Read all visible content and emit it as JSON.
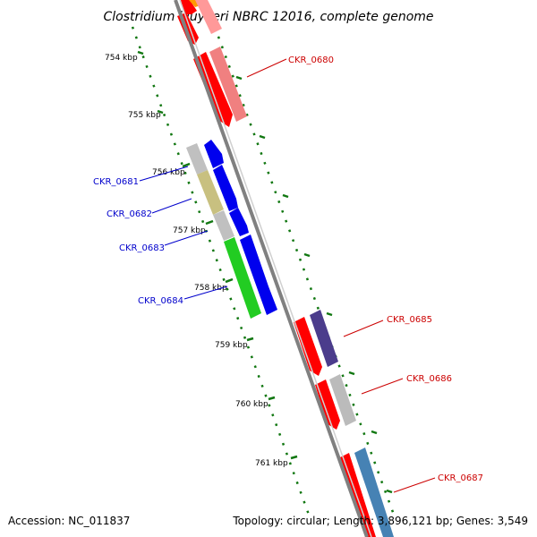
{
  "title": "Clostridium kluyveri NBRC 12016, complete genome",
  "footer": {
    "accession": "Accession: NC_011837",
    "summary": "Topology: circular; Length: 3,896,121 bp; Genes: 3,549"
  },
  "scale": {
    "ticks": [
      "754 kbp",
      "755 kbp",
      "756 kbp",
      "757 kbp",
      "758 kbp",
      "759 kbp",
      "760 kbp",
      "761 kbp"
    ]
  },
  "genes": {
    "reverse": [
      "CKR_0681",
      "CKR_0682",
      "CKR_0683",
      "CKR_0684"
    ],
    "forward": [
      "CKR_0680",
      "CKR_0685",
      "CKR_0686",
      "CKR_0687"
    ]
  },
  "colors": {
    "reverse_label": "#0000cc",
    "forward_label": "#cc0000",
    "tick_dots": "#117711",
    "backbone": "#808080"
  }
}
